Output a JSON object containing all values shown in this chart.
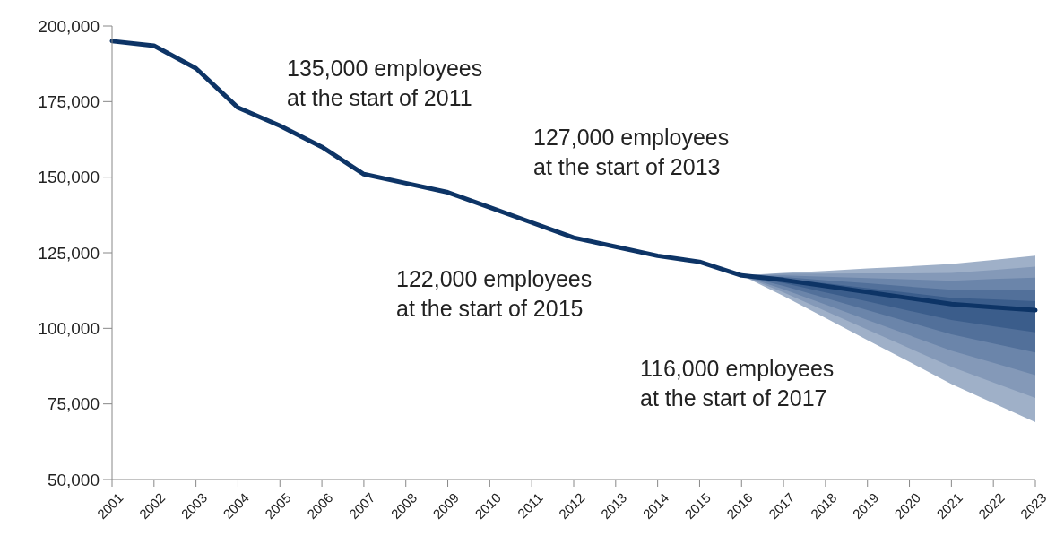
{
  "chart_data": {
    "type": "line",
    "categories": [
      "2001",
      "2002",
      "2003",
      "2004",
      "2005",
      "2006",
      "2007",
      "2008",
      "2009",
      "2010",
      "2011",
      "2012",
      "2013",
      "2014",
      "2015",
      "2016",
      "2017",
      "2018",
      "2019",
      "2020",
      "2021",
      "2022",
      "2023"
    ],
    "ylim": [
      50000,
      200000
    ],
    "yticks": [
      {
        "value": 50000,
        "label": "50,000"
      },
      {
        "value": 75000,
        "label": "75,000"
      },
      {
        "value": 100000,
        "label": "100,000"
      },
      {
        "value": 125000,
        "label": "125,000"
      },
      {
        "value": 150000,
        "label": "150,000"
      },
      {
        "value": 175000,
        "label": "175,000"
      },
      {
        "value": 200000,
        "label": "200,000"
      }
    ],
    "grid": false,
    "annotations": [
      "135,000 employees\nat the start of 2011",
      "127,000 employees\nat the start of 2013",
      "122,000 employees\nat the start of 2015",
      "116,000 employees\nat the start of 2017"
    ],
    "series": [
      {
        "color": "#9fb0c8",
        "values": [
          null,
          null,
          null,
          null,
          null,
          null,
          null,
          null,
          null,
          null,
          null,
          null,
          null,
          null,
          null,
          null,
          null,
          null,
          null,
          null,
          null,
          null,
          null
        ],
        "lower": [
          null,
          null,
          null,
          null,
          null,
          null,
          null,
          null,
          null,
          null,
          null,
          null,
          null,
          null,
          null,
          117500,
          110700,
          103400,
          96100,
          88900,
          81600,
          75300,
          69000
        ],
        "upper": [
          null,
          null,
          null,
          null,
          null,
          null,
          null,
          null,
          null,
          null,
          null,
          null,
          null,
          null,
          null,
          117500,
          118300,
          119000,
          119800,
          120500,
          121300,
          122600,
          124000
        ]
      },
      {
        "color": "#8499b8",
        "values": [
          null,
          null,
          null,
          null,
          null,
          null,
          null,
          null,
          null,
          null,
          null,
          null,
          null,
          null,
          null,
          null,
          null,
          null,
          null,
          null,
          null,
          null,
          null
        ],
        "lower": [
          null,
          null,
          null,
          null,
          null,
          null,
          null,
          null,
          null,
          null,
          null,
          null,
          null,
          null,
          null,
          117500,
          111900,
          105700,
          99600,
          93400,
          87300,
          82100,
          77000
        ],
        "upper": [
          null,
          null,
          null,
          null,
          null,
          null,
          null,
          null,
          null,
          null,
          null,
          null,
          null,
          null,
          null,
          117500,
          118100,
          118100,
          118200,
          118200,
          118300,
          119300,
          120400
        ]
      },
      {
        "color": "#6b85aa",
        "values": [
          null,
          null,
          null,
          null,
          null,
          null,
          null,
          null,
          null,
          null,
          null,
          null,
          null,
          null,
          null,
          null,
          null,
          null,
          null,
          null,
          null,
          null,
          null
        ],
        "lower": [
          null,
          null,
          null,
          null,
          null,
          null,
          null,
          null,
          null,
          null,
          null,
          null,
          null,
          null,
          null,
          117500,
          112900,
          107900,
          102800,
          97700,
          92600,
          88600,
          84500
        ],
        "upper": [
          null,
          null,
          null,
          null,
          null,
          null,
          null,
          null,
          null,
          null,
          null,
          null,
          null,
          null,
          null,
          117500,
          117500,
          117100,
          116600,
          116200,
          115700,
          116300,
          116800
        ]
      },
      {
        "color": "#52709a",
        "values": [
          null,
          null,
          null,
          null,
          null,
          null,
          null,
          null,
          null,
          null,
          null,
          null,
          null,
          null,
          null,
          null,
          null,
          null,
          null,
          null,
          null,
          null,
          null
        ],
        "lower": [
          null,
          null,
          null,
          null,
          null,
          null,
          null,
          null,
          null,
          null,
          null,
          null,
          null,
          null,
          null,
          117500,
          114000,
          110000,
          106000,
          102000,
          98000,
          95000,
          92000
        ],
        "upper": [
          null,
          null,
          null,
          null,
          null,
          null,
          null,
          null,
          null,
          null,
          null,
          null,
          null,
          null,
          null,
          117500,
          117000,
          115900,
          114900,
          113800,
          112800,
          112700,
          112700
        ]
      },
      {
        "color": "#3b5d8b",
        "values": [
          null,
          null,
          null,
          null,
          null,
          null,
          null,
          null,
          null,
          null,
          null,
          null,
          null,
          null,
          null,
          null,
          null,
          null,
          null,
          null,
          null,
          null,
          null
        ],
        "lower": [
          null,
          null,
          null,
          null,
          null,
          null,
          null,
          null,
          null,
          null,
          null,
          null,
          null,
          null,
          null,
          117500,
          115000,
          111900,
          108900,
          105800,
          102800,
          100700,
          98700
        ],
        "upper": [
          null,
          null,
          null,
          null,
          null,
          null,
          null,
          null,
          null,
          null,
          null,
          null,
          null,
          null,
          null,
          117500,
          116400,
          114900,
          113300,
          111700,
          110100,
          109600,
          109000
        ]
      },
      {
        "color": "#0d3466",
        "values": [
          195000,
          193500,
          186000,
          173000,
          167000,
          160000,
          151000,
          148000,
          145000,
          140000,
          135000,
          130000,
          127000,
          124000,
          122000,
          117500,
          116000,
          114000,
          112000,
          110000,
          108000,
          107000,
          106000
        ]
      }
    ]
  }
}
